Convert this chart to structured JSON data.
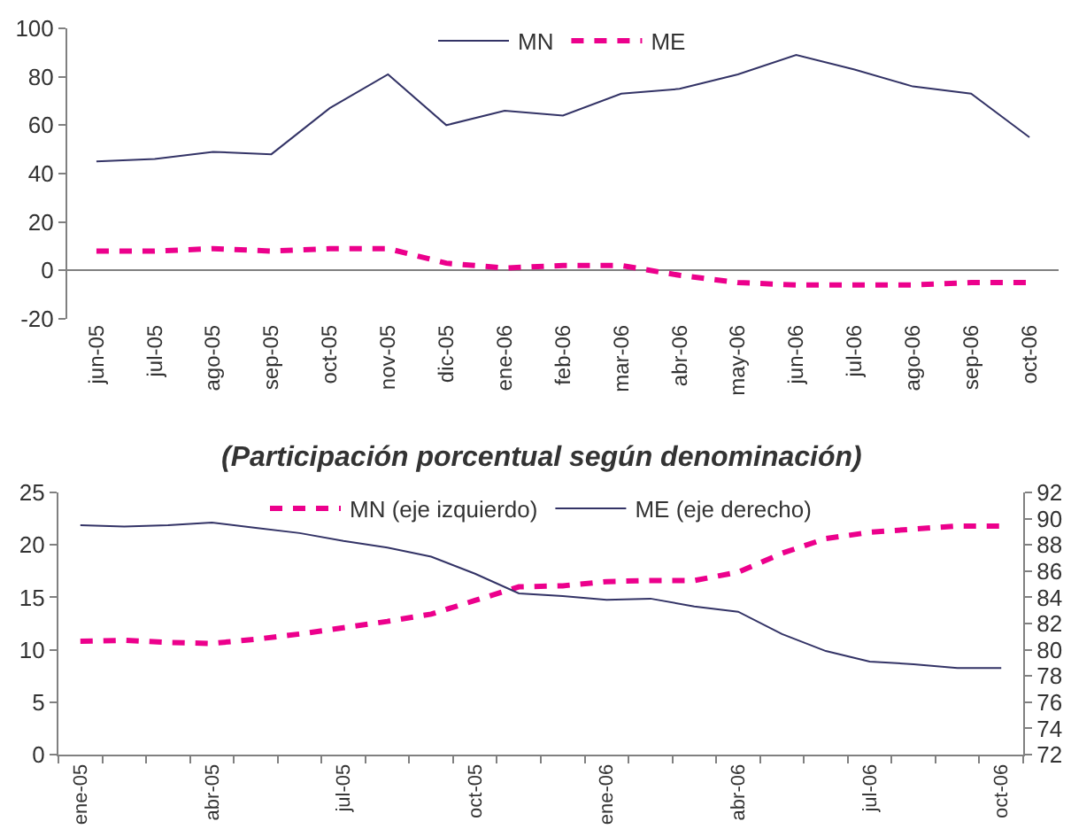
{
  "chart_data": [
    {
      "type": "line",
      "categories": [
        "jun-05",
        "jul-05",
        "ago-05",
        "sep-05",
        "oct-05",
        "nov-05",
        "dic-05",
        "ene-06",
        "feb-06",
        "mar-06",
        "abr-06",
        "may-06",
        "jun-06",
        "jul-06",
        "ago-06",
        "sep-06",
        "oct-06"
      ],
      "series": [
        {
          "name": "MN",
          "color": "#333366",
          "line_style": "solid",
          "values": [
            45,
            46,
            49,
            48,
            67,
            81,
            60,
            66,
            64,
            73,
            75,
            81,
            89,
            83,
            76,
            73,
            55
          ]
        },
        {
          "name": "ME",
          "color": "#ec008c",
          "line_style": "dashed",
          "values": [
            8,
            8,
            9,
            8,
            9,
            9,
            3,
            1,
            2,
            2,
            -2,
            -5,
            -6,
            -6,
            -6,
            -5,
            -5
          ]
        }
      ],
      "ylim": [
        -20,
        100
      ],
      "yticks": [
        -20,
        0,
        20,
        40,
        60,
        80,
        100
      ],
      "legend": "top"
    },
    {
      "type": "line",
      "title": "(Participación porcentual según denominación)",
      "categories": [
        "ene-05",
        null,
        null,
        "abr-05",
        null,
        null,
        "jul-05",
        null,
        null,
        "oct-05",
        null,
        null,
        "ene-06",
        null,
        null,
        "abr-06",
        null,
        null,
        "jul-06",
        null,
        null,
        "oct-06"
      ],
      "series": [
        {
          "name": "MN (eje izquierdo)",
          "color": "#ec008c",
          "line_style": "dashed",
          "values": [
            10.8,
            10.9,
            10.7,
            10.6,
            11.0,
            11.5,
            12.1,
            12.7,
            13.4,
            14.7,
            16.0,
            16.1,
            16.5,
            16.6,
            16.6,
            17.4,
            19.2,
            20.6,
            21.2,
            21.5,
            21.8,
            21.8
          ]
        },
        {
          "name": "ME (eje derecho)",
          "color": "#333366",
          "line_style": "solid",
          "axis": "y2",
          "values": [
            89.5,
            89.4,
            89.5,
            89.7,
            89.3,
            88.9,
            88.3,
            87.8,
            87.1,
            85.8,
            84.3,
            84.1,
            83.8,
            83.9,
            83.3,
            82.9,
            81.2,
            79.9,
            79.1,
            78.9,
            78.6,
            78.6
          ]
        }
      ],
      "ylim": [
        0,
        25
      ],
      "yticks": [
        0,
        5,
        10,
        15,
        20,
        25
      ],
      "y2lim": [
        72,
        92
      ],
      "y2ticks": [
        72,
        74,
        76,
        78,
        80,
        82,
        84,
        86,
        88,
        90,
        92
      ],
      "legend": "top"
    }
  ]
}
